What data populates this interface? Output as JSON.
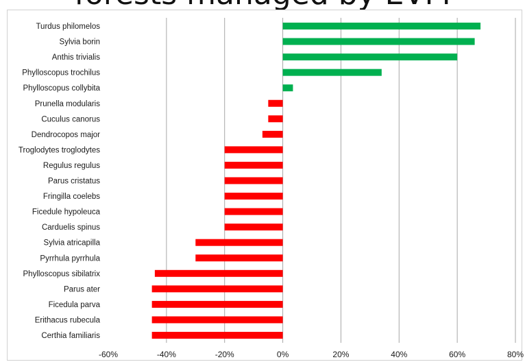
{
  "title": "forests managed by EVM",
  "chart_data": {
    "type": "bar",
    "orientation": "horizontal",
    "categories": [
      "Turdus philomelos",
      "Sylvia borin",
      "Anthis trivialis",
      "Phylloscopus trochilus",
      "Phylloscopus collybita",
      "Prunella modularis",
      "Cuculus canorus",
      "Dendrocopos major",
      "Troglodytes troglodytes",
      "Regulus regulus",
      "Parus cristatus",
      "Fringilla coelebs",
      "Ficedule hypoleuca",
      "Carduelis spinus",
      "Sylvia atricapilla",
      "Pyrrhula pyrrhula",
      "Phylloscopus sibilatrix",
      "Parus ater",
      "Ficedula parva",
      "Erithacus rubecula",
      "Certhia familiaris"
    ],
    "values": [
      68,
      66,
      60,
      34,
      3.5,
      -5,
      -5,
      -7,
      -20,
      -20,
      -20,
      -20,
      -20,
      -20,
      -30,
      -30,
      -44,
      -45,
      -45,
      -45,
      -45
    ],
    "xlim": [
      -60,
      80
    ],
    "xticks": [
      -60,
      -40,
      -20,
      0,
      20,
      40,
      60,
      80
    ],
    "tick_labels": [
      "-60%",
      "-40%",
      "-20%",
      "0%",
      "20%",
      "40%",
      "60%",
      "80%"
    ],
    "grid": true,
    "colors": {
      "positive": "#00b050",
      "negative": "#ff0000",
      "grid": "#a6a6a6"
    }
  }
}
